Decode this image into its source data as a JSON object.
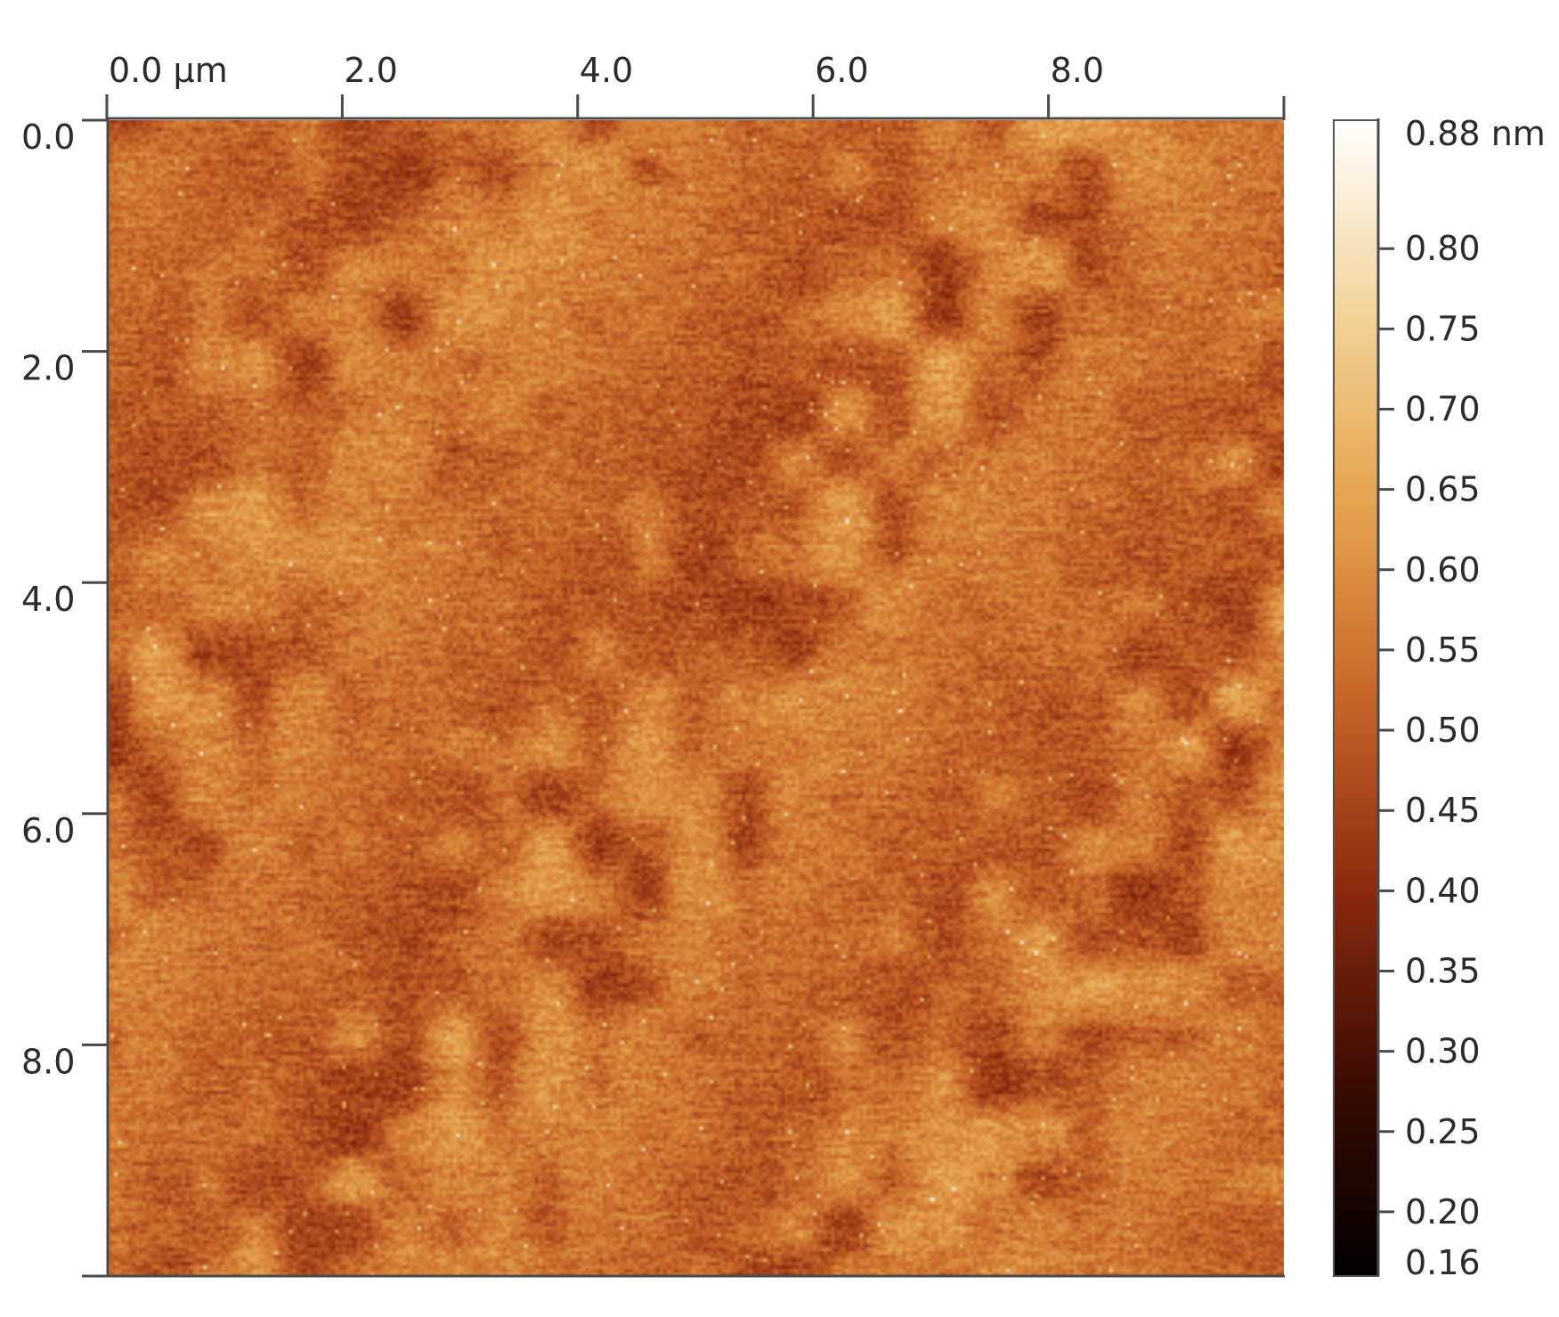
{
  "chart_data": {
    "type": "heatmap",
    "title": "",
    "x_axis": {
      "unit": "µm",
      "range": [
        0,
        10
      ],
      "ticks": [
        0,
        2,
        4,
        6,
        8
      ],
      "tick_labels": [
        "0.0 µm",
        "2.0",
        "4.0",
        "6.0",
        "8.0"
      ]
    },
    "y_axis": {
      "range": [
        0,
        10
      ],
      "inverted": true,
      "ticks": [
        0,
        2,
        4,
        6,
        8
      ],
      "tick_labels": [
        "0.0",
        "2.0",
        "4.0",
        "6.0",
        "8.0"
      ]
    },
    "colorbar": {
      "unit": "nm",
      "range": [
        0.16,
        0.88
      ],
      "ticks": [
        0.88,
        0.8,
        0.75,
        0.7,
        0.65,
        0.6,
        0.55,
        0.5,
        0.45,
        0.4,
        0.35,
        0.3,
        0.25,
        0.2,
        0.16
      ],
      "tick_labels": [
        "0.88 nm",
        "0.80",
        "0.75",
        "0.70",
        "0.65",
        "0.60",
        "0.55",
        "0.50",
        "0.45",
        "0.40",
        "0.35",
        "0.30",
        "0.25",
        "0.20",
        "0.16"
      ],
      "colors": [
        "#000000",
        "#3b0c04",
        "#8a2a0e",
        "#c6662a",
        "#e5a24d",
        "#f2d39a",
        "#ffffff"
      ]
    },
    "grid": false,
    "legend": "colorbar right",
    "surface": {
      "description_values": "AFM height map, mostly 0.45–0.65 nm with darker diagonal troughs and bright grains",
      "mean": 0.53,
      "min": 0.16,
      "max": 0.88
    }
  }
}
